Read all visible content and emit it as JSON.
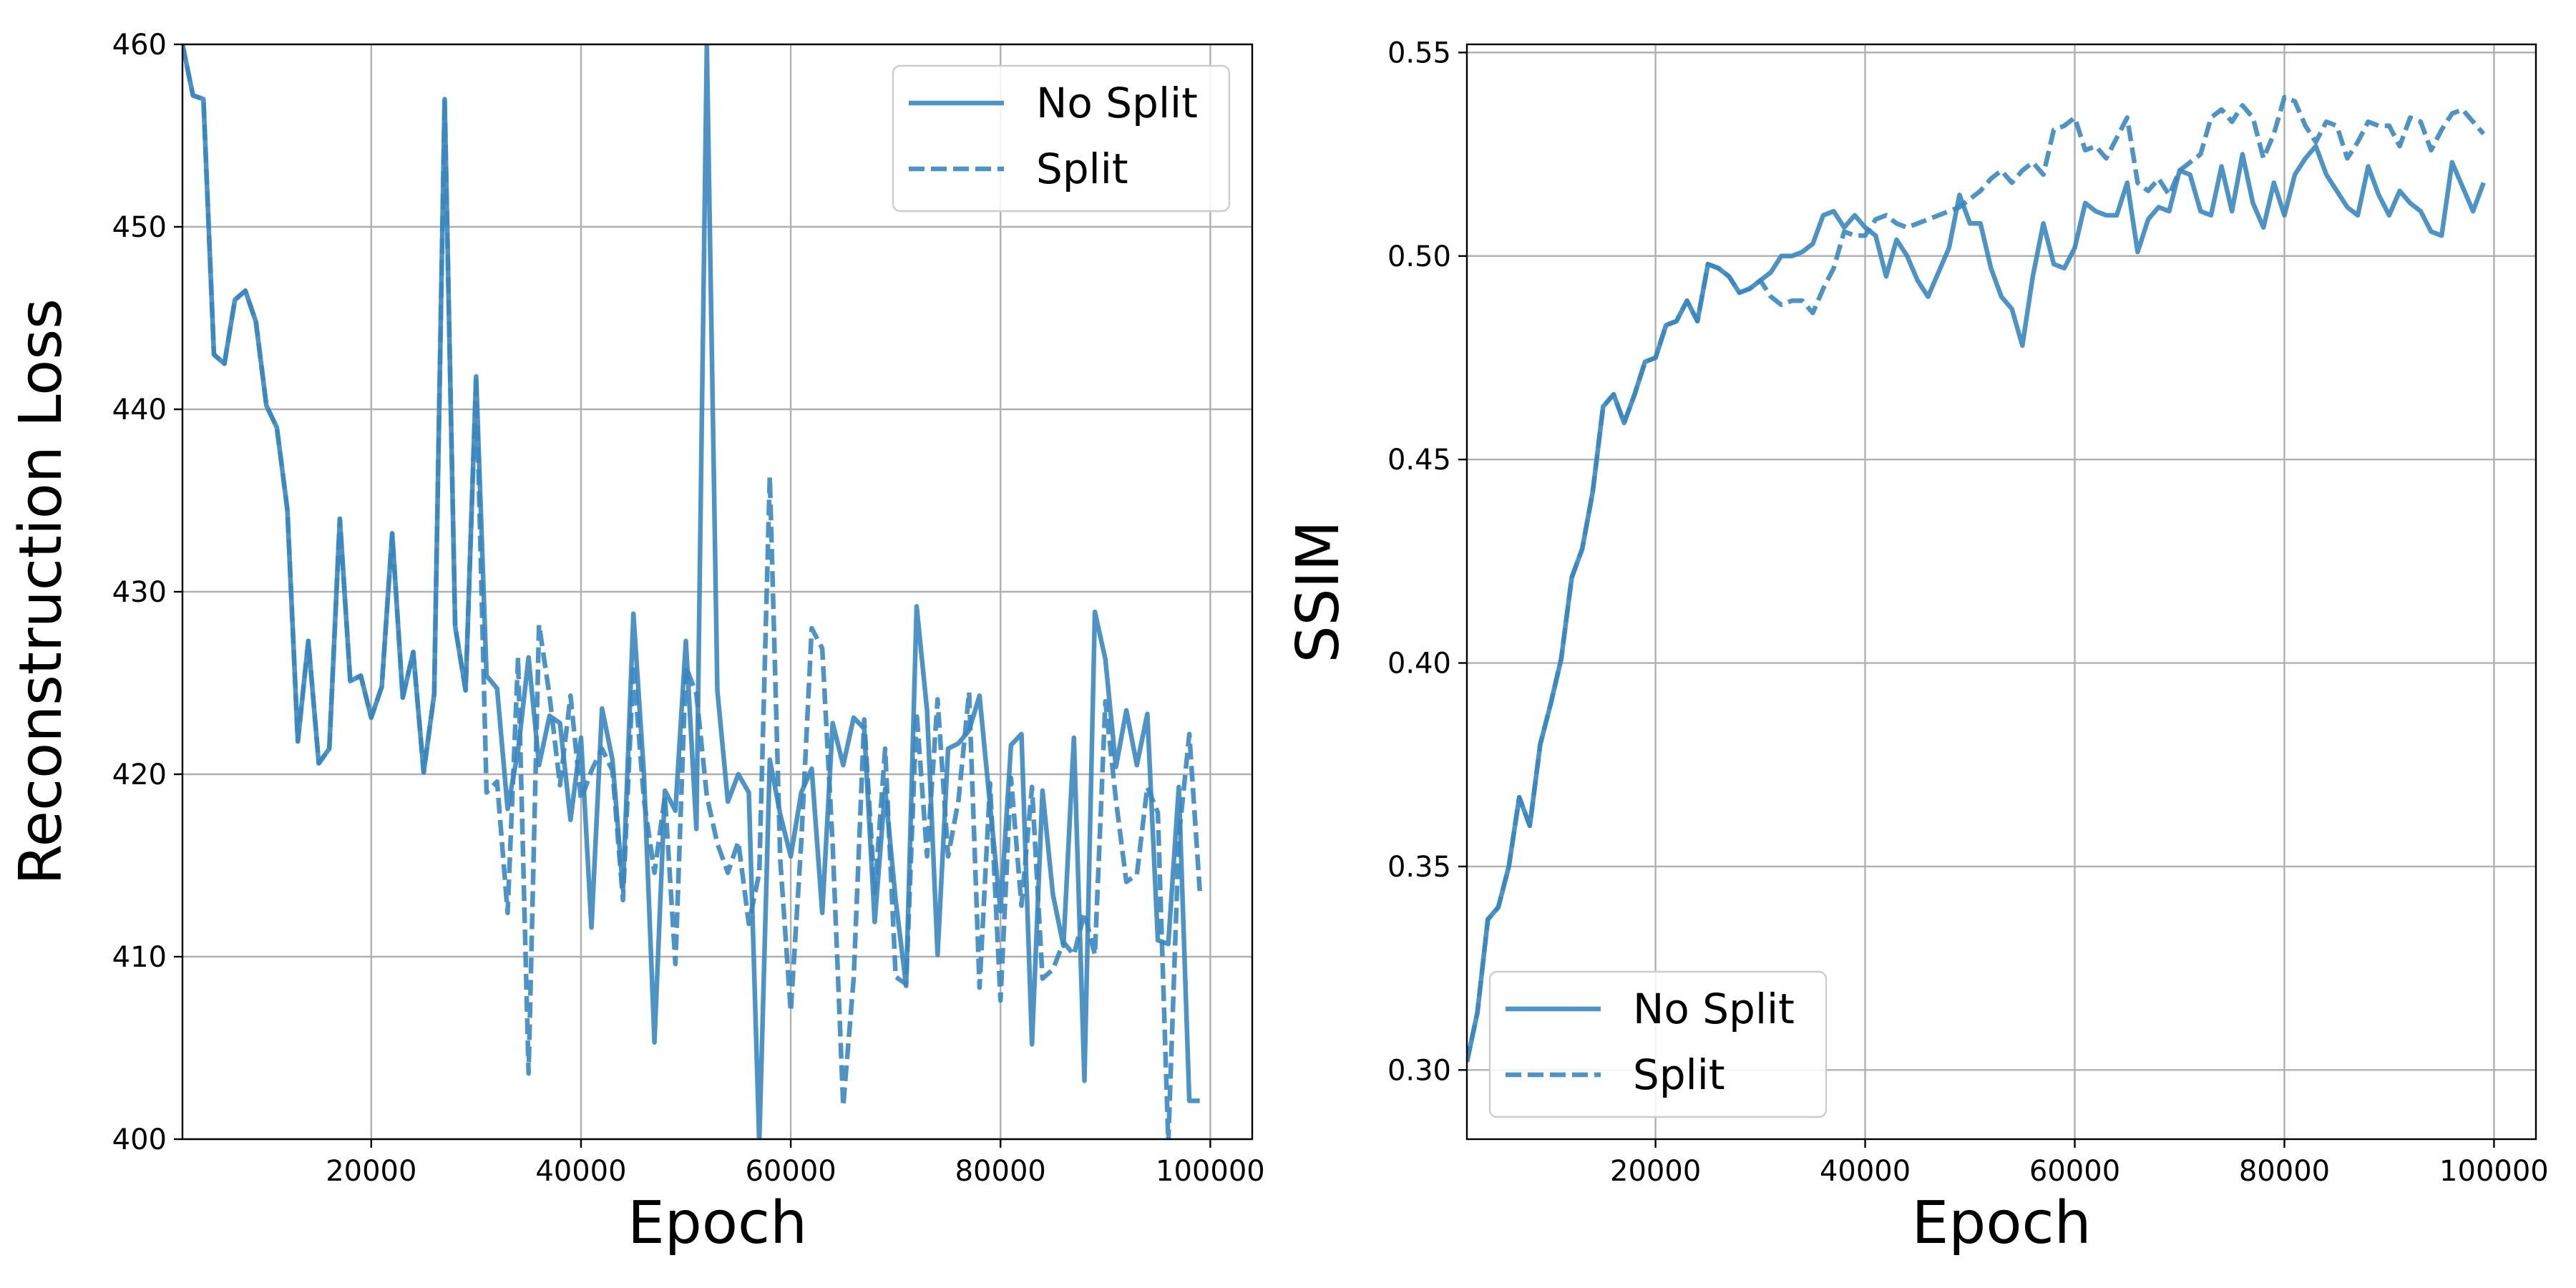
{
  "chart_data": [
    {
      "type": "line",
      "title": "",
      "xlabel": "Epoch",
      "ylabel": "Reconstruction Loss",
      "xlim": [
        2000,
        104000
      ],
      "ylim": [
        400,
        460
      ],
      "xticks": [
        20000,
        40000,
        60000,
        80000,
        100000
      ],
      "yticks": [
        400,
        410,
        420,
        430,
        440,
        450,
        460
      ],
      "grid": true,
      "legend_position": "top-right",
      "color": "#3a87c0",
      "series": [
        {
          "name": "No Split",
          "style": "solid",
          "x": [
            2000,
            3000,
            4000,
            5000,
            6000,
            7000,
            8000,
            9000,
            10000,
            11000,
            12000,
            13000,
            14000,
            15000,
            16000,
            17000,
            18000,
            19000,
            20000,
            21000,
            22000,
            23000,
            24000,
            25000,
            26000,
            27000,
            28000,
            29000,
            30000,
            31000,
            32000,
            33000,
            34000,
            35000,
            36000,
            37000,
            38000,
            39000,
            40000,
            41000,
            42000,
            43000,
            44000,
            45000,
            46000,
            47000,
            48000,
            49000,
            50000,
            51000,
            52000,
            53000,
            54000,
            55000,
            56000,
            57000,
            58000,
            59000,
            60000,
            61000,
            62000,
            63000,
            64000,
            65000,
            66000,
            67000,
            68000,
            69000,
            70000,
            71000,
            72000,
            73000,
            74000,
            75000,
            76000,
            77000,
            78000,
            79000,
            80000,
            81000,
            82000,
            83000,
            84000,
            85000,
            86000,
            87000,
            88000,
            89000,
            90000,
            91000,
            92000,
            93000,
            94000,
            95000,
            96000,
            97000,
            98000,
            99000
          ],
          "y": [
            460,
            457.2,
            457.0,
            443.0,
            442.5,
            446.0,
            446.5,
            444.8,
            440.2,
            439.0,
            434.5,
            421.8,
            427.3,
            420.6,
            421.4,
            434.0,
            425.1,
            425.4,
            423.1,
            424.8,
            433.2,
            424.2,
            426.7,
            420.1,
            424.4,
            457.0,
            428.1,
            424.6,
            441.8,
            425.4,
            424.7,
            418.1,
            421.3,
            426.4,
            420.5,
            423.2,
            422.8,
            417.5,
            422.0,
            411.6,
            423.6,
            420.8,
            413.7,
            428.8,
            420.0,
            405.3,
            419.1,
            418.0,
            427.3,
            417.0,
            460.0,
            424.6,
            418.5,
            420.0,
            419.0,
            399.8,
            420.8,
            417.8,
            415.5,
            419.0,
            420.3,
            412.4,
            422.8,
            420.5,
            423.1,
            422.5,
            411.9,
            419.2,
            413.1,
            408.4,
            429.2,
            423.5,
            410.1,
            421.4,
            421.7,
            422.4,
            424.3,
            418.3,
            412.5,
            421.6,
            422.2,
            405.2,
            419.1,
            413.4,
            410.6,
            422.0,
            403.2,
            428.9,
            426.3,
            420.4,
            423.5,
            420.5,
            423.3,
            410.9,
            410.7,
            419.3,
            402.1,
            402.1
          ]
        },
        {
          "name": "Split",
          "style": "dashed",
          "x": [
            2000,
            3000,
            4000,
            5000,
            6000,
            7000,
            8000,
            9000,
            10000,
            11000,
            12000,
            13000,
            14000,
            15000,
            16000,
            17000,
            18000,
            19000,
            20000,
            21000,
            22000,
            23000,
            24000,
            25000,
            26000,
            27000,
            28000,
            29000,
            30000,
            31000,
            32000,
            33000,
            34000,
            35000,
            36000,
            37000,
            38000,
            39000,
            40000,
            41000,
            42000,
            43000,
            44000,
            45000,
            46000,
            47000,
            48000,
            49000,
            50000,
            51000,
            52000,
            53000,
            54000,
            55000,
            56000,
            57000,
            58000,
            59000,
            60000,
            61000,
            62000,
            63000,
            64000,
            65000,
            66000,
            67000,
            68000,
            69000,
            70000,
            71000,
            72000,
            73000,
            74000,
            75000,
            76000,
            77000,
            78000,
            79000,
            80000,
            81000,
            82000,
            83000,
            84000,
            85000,
            86000,
            87000,
            88000,
            89000,
            90000,
            91000,
            92000,
            93000,
            94000,
            95000,
            96000,
            97000,
            98000,
            99000
          ],
          "y": [
            460,
            457.2,
            457.0,
            443.0,
            442.5,
            446.0,
            446.5,
            444.8,
            440.2,
            439.0,
            434.5,
            421.8,
            427.3,
            420.6,
            421.4,
            434.0,
            425.1,
            425.4,
            423.1,
            424.8,
            433.2,
            424.2,
            426.7,
            420.1,
            424.4,
            457.0,
            428.1,
            424.6,
            441.8,
            419.0,
            419.6,
            412.4,
            426.4,
            403.6,
            428.2,
            424.3,
            419.4,
            424.3,
            418.6,
            420.2,
            421.4,
            420.2,
            413.1,
            426.0,
            418.6,
            414.6,
            418.8,
            409.6,
            425.9,
            424.4,
            418.8,
            416.2,
            414.6,
            416.3,
            411.8,
            414.6,
            436.3,
            415.3,
            407.0,
            416.3,
            428.0,
            426.9,
            416.1,
            401.8,
            408.8,
            423.0,
            413.5,
            421.4,
            408.9,
            408.5,
            423.4,
            415.5,
            424.1,
            415.5,
            418.6,
            424.5,
            408.3,
            419.5,
            407.6,
            419.8,
            412.8,
            419.3,
            408.8,
            409.3,
            410.8,
            410.1,
            412.4,
            410.1,
            424.0,
            418.6,
            414.1,
            414.5,
            419.3,
            417.9,
            399.8,
            416.5,
            422.2,
            413.6
          ]
        }
      ]
    },
    {
      "type": "line",
      "title": "",
      "xlabel": "Epoch",
      "ylabel": "SSIM",
      "xlim": [
        2000,
        104000
      ],
      "ylim": [
        0.283,
        0.552
      ],
      "xticks": [
        20000,
        40000,
        60000,
        80000,
        100000
      ],
      "yticks": [
        0.3,
        0.35,
        0.4,
        0.45,
        0.5,
        0.55
      ],
      "ytick_labels": [
        "0.30",
        "0.35",
        "0.40",
        "0.45",
        "0.50",
        "0.55"
      ],
      "grid": true,
      "legend_position": "bottom-left",
      "color": "#3a87c0",
      "series": [
        {
          "name": "No Split",
          "style": "solid",
          "x": [
            2000,
            3000,
            4000,
            5000,
            6000,
            7000,
            8000,
            9000,
            10000,
            11000,
            12000,
            13000,
            14000,
            15000,
            16000,
            17000,
            18000,
            19000,
            20000,
            21000,
            22000,
            23000,
            24000,
            25000,
            26000,
            27000,
            28000,
            29000,
            30000,
            31000,
            32000,
            33000,
            34000,
            35000,
            36000,
            37000,
            38000,
            39000,
            40000,
            41000,
            42000,
            43000,
            44000,
            45000,
            46000,
            47000,
            48000,
            49000,
            50000,
            51000,
            52000,
            53000,
            54000,
            55000,
            56000,
            57000,
            58000,
            59000,
            60000,
            61000,
            62000,
            63000,
            64000,
            65000,
            66000,
            67000,
            68000,
            69000,
            70000,
            71000,
            72000,
            73000,
            74000,
            75000,
            76000,
            77000,
            78000,
            79000,
            80000,
            81000,
            82000,
            83000,
            84000,
            85000,
            86000,
            87000,
            88000,
            89000,
            90000,
            91000,
            92000,
            93000,
            94000,
            95000,
            96000,
            97000,
            98000,
            99000
          ],
          "y": [
            0.302,
            0.314,
            0.337,
            0.34,
            0.35,
            0.367,
            0.36,
            0.38,
            0.39,
            0.401,
            0.421,
            0.428,
            0.442,
            0.463,
            0.466,
            0.459,
            0.466,
            0.474,
            0.475,
            0.483,
            0.484,
            0.489,
            0.484,
            0.498,
            0.497,
            0.495,
            0.491,
            0.492,
            0.494,
            0.496,
            0.5,
            0.5,
            0.501,
            0.503,
            0.51,
            0.511,
            0.507,
            0.51,
            0.507,
            0.505,
            0.495,
            0.504,
            0.5,
            0.494,
            0.49,
            0.496,
            0.502,
            0.515,
            0.508,
            0.508,
            0.497,
            0.49,
            0.487,
            0.478,
            0.495,
            0.508,
            0.498,
            0.497,
            0.502,
            0.513,
            0.511,
            0.51,
            0.51,
            0.518,
            0.501,
            0.509,
            0.512,
            0.511,
            0.521,
            0.52,
            0.511,
            0.51,
            0.522,
            0.511,
            0.525,
            0.513,
            0.507,
            0.518,
            0.51,
            0.52,
            0.524,
            0.527,
            0.52,
            0.516,
            0.512,
            0.51,
            0.522,
            0.515,
            0.51,
            0.516,
            0.513,
            0.511,
            0.506,
            0.505,
            0.523,
            0.517,
            0.511,
            0.518
          ]
        },
        {
          "name": "Split",
          "style": "dashed",
          "x": [
            2000,
            3000,
            4000,
            5000,
            6000,
            7000,
            8000,
            9000,
            10000,
            11000,
            12000,
            13000,
            14000,
            15000,
            16000,
            17000,
            18000,
            19000,
            20000,
            21000,
            22000,
            23000,
            24000,
            25000,
            26000,
            27000,
            28000,
            29000,
            30000,
            31000,
            32000,
            33000,
            34000,
            35000,
            36000,
            37000,
            38000,
            39000,
            40000,
            41000,
            42000,
            43000,
            44000,
            45000,
            46000,
            47000,
            48000,
            49000,
            50000,
            51000,
            52000,
            53000,
            54000,
            55000,
            56000,
            57000,
            58000,
            59000,
            60000,
            61000,
            62000,
            63000,
            64000,
            65000,
            66000,
            67000,
            68000,
            69000,
            70000,
            71000,
            72000,
            73000,
            74000,
            75000,
            76000,
            77000,
            78000,
            79000,
            80000,
            81000,
            82000,
            83000,
            84000,
            85000,
            86000,
            87000,
            88000,
            89000,
            90000,
            91000,
            92000,
            93000,
            94000,
            95000,
            96000,
            97000,
            98000,
            99000
          ],
          "y": [
            0.302,
            0.314,
            0.337,
            0.34,
            0.35,
            0.367,
            0.36,
            0.38,
            0.39,
            0.401,
            0.421,
            0.428,
            0.442,
            0.463,
            0.466,
            0.459,
            0.466,
            0.474,
            0.475,
            0.483,
            0.484,
            0.489,
            0.484,
            0.498,
            0.497,
            0.495,
            0.491,
            0.492,
            0.494,
            0.49,
            0.488,
            0.489,
            0.489,
            0.486,
            0.492,
            0.497,
            0.506,
            0.505,
            0.505,
            0.509,
            0.51,
            0.508,
            0.507,
            0.508,
            0.509,
            0.51,
            0.511,
            0.512,
            0.514,
            0.516,
            0.519,
            0.521,
            0.518,
            0.521,
            0.523,
            0.52,
            0.531,
            0.532,
            0.534,
            0.526,
            0.527,
            0.524,
            0.529,
            0.534,
            0.518,
            0.516,
            0.519,
            0.515,
            0.521,
            0.523,
            0.525,
            0.534,
            0.536,
            0.533,
            0.537,
            0.534,
            0.524,
            0.53,
            0.539,
            0.538,
            0.532,
            0.528,
            0.533,
            0.532,
            0.524,
            0.528,
            0.533,
            0.532,
            0.532,
            0.527,
            0.534,
            0.533,
            0.526,
            0.531,
            0.535,
            0.536,
            0.533,
            0.53
          ]
        }
      ]
    }
  ]
}
